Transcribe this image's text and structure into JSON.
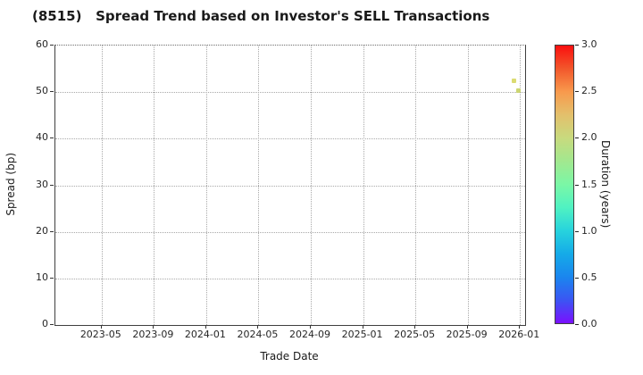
{
  "page": {
    "background": "#ffffff"
  },
  "chart_data": {
    "type": "scatter",
    "title": "(8515)   Spread Trend based on Investor's SELL Transactions",
    "xlabel": "Trade Date",
    "ylabel": "Spread (bp)",
    "x_axis": {
      "tick_labels": [
        "2023-05",
        "2023-09",
        "2024-01",
        "2024-05",
        "2024-09",
        "2025-01",
        "2025-05",
        "2025-09",
        "2026-01"
      ],
      "range_start": "2023-01-15",
      "range_end": "2026-01-13"
    },
    "y_axis": {
      "min": 0,
      "max": 60,
      "ticks": [
        0,
        10,
        20,
        30,
        40,
        50,
        60
      ]
    },
    "grid": {
      "style": "dotted",
      "color": "#a9a9a9",
      "on": true
    },
    "legend": "none",
    "points": [
      {
        "date": "2025-12-20",
        "spread": 52.3,
        "duration": 2.0,
        "color": "#d9d96a"
      },
      {
        "date": "2025-12-30",
        "spread": 50.2,
        "duration": 1.9,
        "color": "#c9d46c"
      }
    ],
    "colorbar": {
      "label": "Duration (years)",
      "min": 0,
      "max": 3,
      "tick_labels": [
        "0.0",
        "0.5",
        "1.0",
        "1.5",
        "2.0",
        "2.5",
        "3.0"
      ],
      "colormap": "rainbow",
      "gradient_stops": [
        {
          "value": 0.0,
          "color": "#7a10fe"
        },
        {
          "value": 0.25,
          "color": "#3b55f3"
        },
        {
          "value": 0.5,
          "color": "#1a86ee"
        },
        {
          "value": 0.75,
          "color": "#15abe8"
        },
        {
          "value": 1.0,
          "color": "#27d3dd"
        },
        {
          "value": 1.25,
          "color": "#50f2c2"
        },
        {
          "value": 1.5,
          "color": "#7bf7a6"
        },
        {
          "value": 1.75,
          "color": "#a2e88f"
        },
        {
          "value": 2.0,
          "color": "#c8da7e"
        },
        {
          "value": 2.25,
          "color": "#e3c06c"
        },
        {
          "value": 2.5,
          "color": "#f89a4d"
        },
        {
          "value": 2.75,
          "color": "#f2572b"
        },
        {
          "value": 3.0,
          "color": "#fa0f0f"
        }
      ]
    }
  }
}
